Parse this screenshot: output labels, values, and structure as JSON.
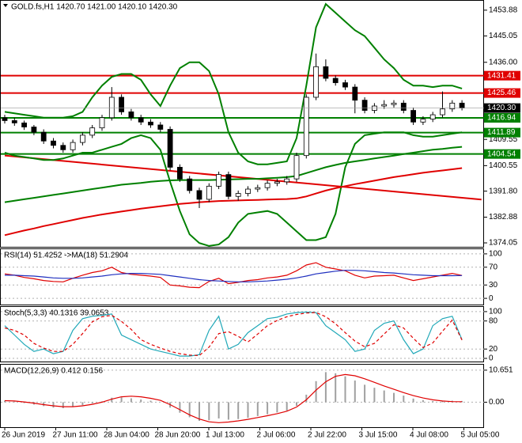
{
  "chart_data": [
    {
      "type": "candlestick",
      "title": "GOLD.fs,H1  1420.70 1421.00 1420.10 1420.30",
      "ylim": [
        1372.7,
        1457.1
      ],
      "yticks": [
        1453.88,
        1445.05,
        {
          "value": 1436.0,
          "label": "1436.00"
        },
        {
          "value": 1409.55,
          "label": "1409.55"
        },
        {
          "value": 1400.55,
          "label": "1400.55"
        },
        {
          "value": 1391.8,
          "label": "1391.80"
        },
        1382.88,
        1374.05
      ],
      "up_color": "#ffffff",
      "down_color": "#000000",
      "ohlc": [
        [
          1417,
          1418,
          1415,
          1416
        ],
        [
          1416,
          1417,
          1414.2,
          1415.2
        ],
        [
          1415.2,
          1416,
          1412.8,
          1413.8
        ],
        [
          1413.8,
          1414.5,
          1411,
          1412
        ],
        [
          1412,
          1413,
          1408,
          1409
        ],
        [
          1409,
          1410,
          1406.5,
          1407.5
        ],
        [
          1407.5,
          1408.5,
          1405,
          1406
        ],
        [
          1406,
          1409.5,
          1405,
          1408.5
        ],
        [
          1408.5,
          1412,
          1407.5,
          1411
        ],
        [
          1411,
          1414.5,
          1410,
          1413.5
        ],
        [
          1413.5,
          1418,
          1412.5,
          1417
        ],
        [
          1417,
          1427.5,
          1416,
          1424
        ],
        [
          1424,
          1425,
          1418,
          1419
        ],
        [
          1419,
          1420,
          1416,
          1417
        ],
        [
          1417,
          1418,
          1414.5,
          1415.5
        ],
        [
          1415.5,
          1416.5,
          1413.5,
          1414.5
        ],
        [
          1414.5,
          1415.5,
          1412,
          1413
        ],
        [
          1413,
          1414,
          1399,
          1400
        ],
        [
          1400,
          1401,
          1395,
          1396
        ],
        [
          1396,
          1397,
          1391,
          1392
        ],
        [
          1392,
          1393,
          1386,
          1389
        ],
        [
          1389,
          1394.5,
          1388,
          1393.5
        ],
        [
          1393.5,
          1398.5,
          1392.5,
          1397.5
        ],
        [
          1397.5,
          1398.5,
          1389,
          1390
        ],
        [
          1390,
          1392,
          1388.5,
          1391
        ],
        [
          1391,
          1393.5,
          1390,
          1392.5
        ],
        [
          1392.5,
          1394,
          1391.5,
          1393
        ],
        [
          1393,
          1395.5,
          1392,
          1394.5
        ],
        [
          1394.5,
          1396,
          1393.5,
          1395
        ],
        [
          1395,
          1397,
          1394,
          1396
        ],
        [
          1396,
          1405,
          1395,
          1404
        ],
        [
          1404,
          1425,
          1403,
          1424
        ],
        [
          1424,
          1439,
          1423,
          1434.5
        ],
        [
          1434.5,
          1437,
          1429.5,
          1430.5
        ],
        [
          1430.5,
          1431.5,
          1428,
          1429
        ],
        [
          1429,
          1430,
          1426.5,
          1427.5
        ],
        [
          1427.5,
          1428.5,
          1418.5,
          1423
        ],
        [
          1423,
          1424,
          1418.5,
          1419.5
        ],
        [
          1419.5,
          1422,
          1418.5,
          1421
        ],
        [
          1421,
          1423,
          1420,
          1421.5
        ],
        [
          1421.5,
          1423,
          1420.5,
          1422
        ],
        [
          1422,
          1423,
          1418.5,
          1419.5
        ],
        [
          1419.5,
          1420.5,
          1414.5,
          1415.5
        ],
        [
          1415.5,
          1417.5,
          1414.5,
          1416.5
        ],
        [
          1416.5,
          1419,
          1415.5,
          1418
        ],
        [
          1418,
          1426,
          1417,
          1420
        ],
        [
          1420,
          1423,
          1419,
          1422
        ],
        [
          1422,
          1423,
          1419.5,
          1420.3
        ]
      ],
      "series": [
        {
          "color": "#008000",
          "values": [
            1419,
            1418.5,
            1418,
            1417.5,
            1417,
            1417,
            1417,
            1417.5,
            1419,
            1424,
            1428,
            1431,
            1432,
            1432,
            1430,
            1425,
            1421,
            1428,
            1434,
            1436,
            1436,
            1433,
            1425,
            1412,
            1405,
            1402,
            1401,
            1401,
            1401.5,
            1402,
            1410,
            1428,
            1448,
            1456,
            1453,
            1450,
            1447,
            1445,
            1441,
            1437,
            1434,
            1430,
            1428,
            1428,
            1427.5,
            1428,
            1428,
            1427
          ]
        },
        {
          "color": "#008000",
          "values": [
            1405,
            1404,
            1403.5,
            1403,
            1402.5,
            1402.5,
            1403,
            1404,
            1405,
            1405,
            1406,
            1407,
            1408,
            1410,
            1411,
            1410,
            1406,
            1395,
            1385,
            1377,
            1374,
            1373,
            1373.5,
            1376,
            1381,
            1384,
            1384.5,
            1385,
            1384,
            1381,
            1378,
            1375,
            1375,
            1376,
            1384,
            1400,
            1408,
            1411,
            1411.5,
            1412,
            1412,
            1412,
            1411,
            1410.5,
            1410.5,
            1411,
            1411.5,
            1412
          ]
        },
        {
          "color": "#008000",
          "values": [
            1388,
            1388.5,
            1389,
            1389.5,
            1390,
            1390.5,
            1391,
            1391.5,
            1392,
            1392.5,
            1393,
            1393.5,
            1394,
            1394.3,
            1394.6,
            1395,
            1395.3,
            1395.5,
            1395.6,
            1395.6,
            1395.6,
            1395.6,
            1395.7,
            1395.8,
            1395.9,
            1396,
            1396,
            1396.2,
            1396.4,
            1396.6,
            1397,
            1398,
            1399,
            1400,
            1400.8,
            1401.5,
            1402,
            1402.5,
            1403,
            1403.5,
            1404,
            1404.5,
            1405,
            1405.5,
            1406,
            1406.3,
            1406.7,
            1407
          ]
        },
        {
          "color": "#e00000",
          "values": [
            1376.7,
            1377.5,
            1378.3,
            1379,
            1379.8,
            1380.5,
            1381.2,
            1381.9,
            1382.6,
            1383.2,
            1383.8,
            1384.3,
            1384.8,
            1385.3,
            1385.8,
            1386.2,
            1386.6,
            1387,
            1387.4,
            1387.7,
            1388,
            1388.2,
            1388.4,
            1388.5,
            1388.6,
            1388.7,
            1388.8,
            1388.9,
            1389,
            1389.1,
            1389.3,
            1390,
            1391,
            1392,
            1392.8,
            1393.5,
            1394.2,
            1394.8,
            1395.4,
            1396,
            1396.6,
            1397.1,
            1397.6,
            1398.1,
            1398.5,
            1398.9,
            1399.3,
            1399.7
          ]
        }
      ],
      "trendline": {
        "color": "#e00000",
        "x": [
          0,
          49
        ],
        "values": [
          1404,
          1388.9
        ]
      },
      "levels": [
        {
          "value": 1431.41,
          "color": "#e00000"
        },
        {
          "value": 1425.46,
          "color": "#e00000"
        },
        {
          "value": 1416.94,
          "color": "#008000"
        },
        {
          "value": 1411.89,
          "color": "#008000"
        },
        {
          "value": 1404.54,
          "color": "#008000"
        }
      ],
      "current_price": {
        "value": 1420.3,
        "label": "1420.30"
      }
    },
    {
      "type": "line",
      "title": "RSI(14) 51.4252 ->MA(18) 51.2904",
      "ylim": [
        -14,
        110.5
      ],
      "yticks": [
        100,
        70,
        30,
        0
      ],
      "series": [
        {
          "color": "#e00000",
          "values": [
            55,
            52,
            47,
            44,
            40,
            38,
            37,
            45,
            52,
            58,
            62,
            70,
            58,
            54,
            52,
            50,
            47,
            30,
            28,
            25,
            24,
            38,
            45,
            33,
            36,
            40,
            42,
            46,
            48,
            52,
            62,
            75,
            80,
            70,
            66,
            62,
            52,
            46,
            50,
            51,
            52,
            46,
            40,
            44,
            48,
            52,
            56,
            51.4252
          ]
        },
        {
          "color": "#1f2fbf",
          "values": [
            52,
            52,
            51,
            50,
            48,
            46,
            45,
            45,
            46,
            48,
            50,
            53,
            55,
            56,
            56,
            55,
            54,
            51,
            48,
            45,
            42,
            40,
            39,
            38,
            37,
            37,
            38,
            39,
            41,
            43,
            46,
            50,
            55,
            58,
            61,
            63,
            63,
            62,
            60,
            58,
            57,
            55,
            53,
            52,
            51,
            51,
            51,
            51.2904
          ]
        }
      ]
    },
    {
      "type": "line",
      "title": "Stoch(5,3,3) 40.1316 39.0653",
      "ylim": [
        -6.7,
        110
      ],
      "yticks": [
        100,
        80,
        20,
        0
      ],
      "series": [
        {
          "color": "#20a8b8",
          "values": [
            70,
            50,
            30,
            15,
            20,
            10,
            15,
            60,
            85,
            90,
            92,
            95,
            50,
            40,
            30,
            20,
            15,
            10,
            5,
            5,
            8,
            60,
            90,
            20,
            30,
            55,
            70,
            85,
            88,
            95,
            98,
            99,
            98,
            70,
            55,
            40,
            15,
            20,
            60,
            75,
            80,
            40,
            10,
            20,
            70,
            85,
            90,
            40.1316
          ]
        },
        {
          "color": "#e00000",
          "style": "dashed",
          "values": [
            65,
            60,
            50,
            32,
            22,
            15,
            15,
            30,
            53,
            78,
            89,
            92,
            79,
            62,
            40,
            30,
            22,
            15,
            10,
            7,
            6,
            24,
            53,
            57,
            47,
            35,
            52,
            70,
            81,
            89,
            94,
            97,
            98,
            89,
            74,
            55,
            37,
            25,
            32,
            52,
            72,
            65,
            43,
            23,
            33,
            58,
            82,
            39.0653
          ]
        }
      ]
    },
    {
      "type": "bar",
      "title": "MACD(12,26,9) 0.412 0.156",
      "ylim": [
        -8.3,
        12.47
      ],
      "yticks": [
        10.651,
        {
          "value": 0,
          "label": "0.00"
        }
      ],
      "series": [
        {
          "kind": "bar",
          "color": "#a0a0a0",
          "values": [
            0.5,
            0.2,
            -0.3,
            -0.8,
            -1.3,
            -1.8,
            -2.0,
            -1.6,
            -1.0,
            -0.4,
            0.3,
            1.5,
            1.6,
            1.3,
            0.9,
            0.5,
            0.0,
            -1.8,
            -3.5,
            -5.0,
            -6.2,
            -6.0,
            -5.4,
            -5.8,
            -5.6,
            -5.2,
            -4.6,
            -4.0,
            -3.4,
            -2.8,
            -1.2,
            2.5,
            7.0,
            10.0,
            9.6,
            8.6,
            7.2,
            5.8,
            4.8,
            3.9,
            3.1,
            2.2,
            1.2,
            0.7,
            0.4,
            0.4,
            0.5,
            0.412
          ]
        },
        {
          "kind": "line",
          "color": "#e00000",
          "values": [
            0.5,
            0.4,
            0.1,
            -0.3,
            -0.8,
            -1.2,
            -1.5,
            -1.5,
            -1.2,
            -0.7,
            0.0,
            1.0,
            1.8,
            2.0,
            1.8,
            1.3,
            0.6,
            -0.8,
            -2.5,
            -4.2,
            -5.6,
            -6.5,
            -6.8,
            -6.6,
            -6.2,
            -5.7,
            -5.1,
            -4.5,
            -3.8,
            -3.0,
            -1.6,
            0.8,
            4.0,
            6.8,
            8.6,
            9.2,
            8.8,
            7.8,
            6.6,
            5.4,
            4.3,
            3.2,
            2.2,
            1.4,
            0.8,
            0.4,
            0.2,
            0.156
          ]
        }
      ],
      "x_labels": [
        "26 Jun 2019",
        "27 Jun 11:00",
        "28 Jun 04:00",
        "28 Jun 20:00",
        "1 Jul 13:00",
        "2 Jul 06:00",
        "2 Jul 22:00",
        "3 Jul 15:00",
        "4 Jul 08:00",
        "5 Jul 05:00"
      ]
    }
  ]
}
